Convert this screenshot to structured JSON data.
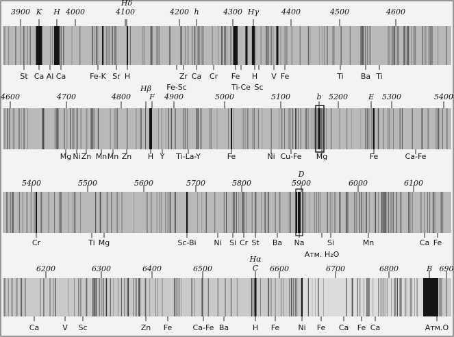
{
  "strips": [
    {
      "scale": [
        "3900",
        "K",
        "H",
        "4000",
        "Hδ",
        "4100",
        "4200",
        "h",
        "4300",
        "Hγ",
        "4400",
        "4500",
        "4600"
      ],
      "labels": [
        "St",
        "Ca",
        "Al",
        "Ca",
        "Fe-K",
        "Sr",
        "H",
        "Zr",
        "Ca",
        "Cr",
        "Fe",
        "H",
        "V",
        "Fe",
        "Ti",
        "Ba",
        "Ti",
        "Fe-Sc",
        "Ti-Ce",
        "Sc"
      ]
    },
    {
      "scale": [
        "4600",
        "4700",
        "4800",
        "Hβ",
        "F",
        "4900",
        "5000",
        "5100",
        "b",
        "5200",
        "E",
        "5300",
        "5400"
      ],
      "labels": [
        "Mg",
        "Ni",
        "Zn",
        "Mn",
        "Mn",
        "Zn",
        "H",
        "Y",
        "Ti-La-Y",
        "Fe",
        "Ni",
        "Cu-Fe",
        "Mg",
        "Fe",
        "Ca-Fe"
      ]
    },
    {
      "scale": [
        "5400",
        "5500",
        "5600",
        "5700",
        "5800",
        "D",
        "5900",
        "6000",
        "6100"
      ],
      "labels": [
        "Cr",
        "Ti",
        "Mg",
        "Sc-Bi",
        "Ni",
        "Si",
        "Cr",
        "St",
        "Ba",
        "Na",
        "Si",
        "Атм. H₂O",
        "Mn",
        "Ca",
        "Fe"
      ]
    },
    {
      "scale": [
        "6200",
        "6300",
        "6400",
        "6500",
        "Hα",
        "C",
        "6600",
        "6700",
        "6800",
        "B",
        "690"
      ],
      "labels": [
        "Ca",
        "V",
        "Sc",
        "Zn",
        "Fe",
        "Ca-Fe",
        "Ba",
        "H",
        "Fe",
        "Ni",
        "Fe",
        "Ca",
        "Fe",
        "Ca",
        "Атм.О"
      ]
    }
  ]
}
